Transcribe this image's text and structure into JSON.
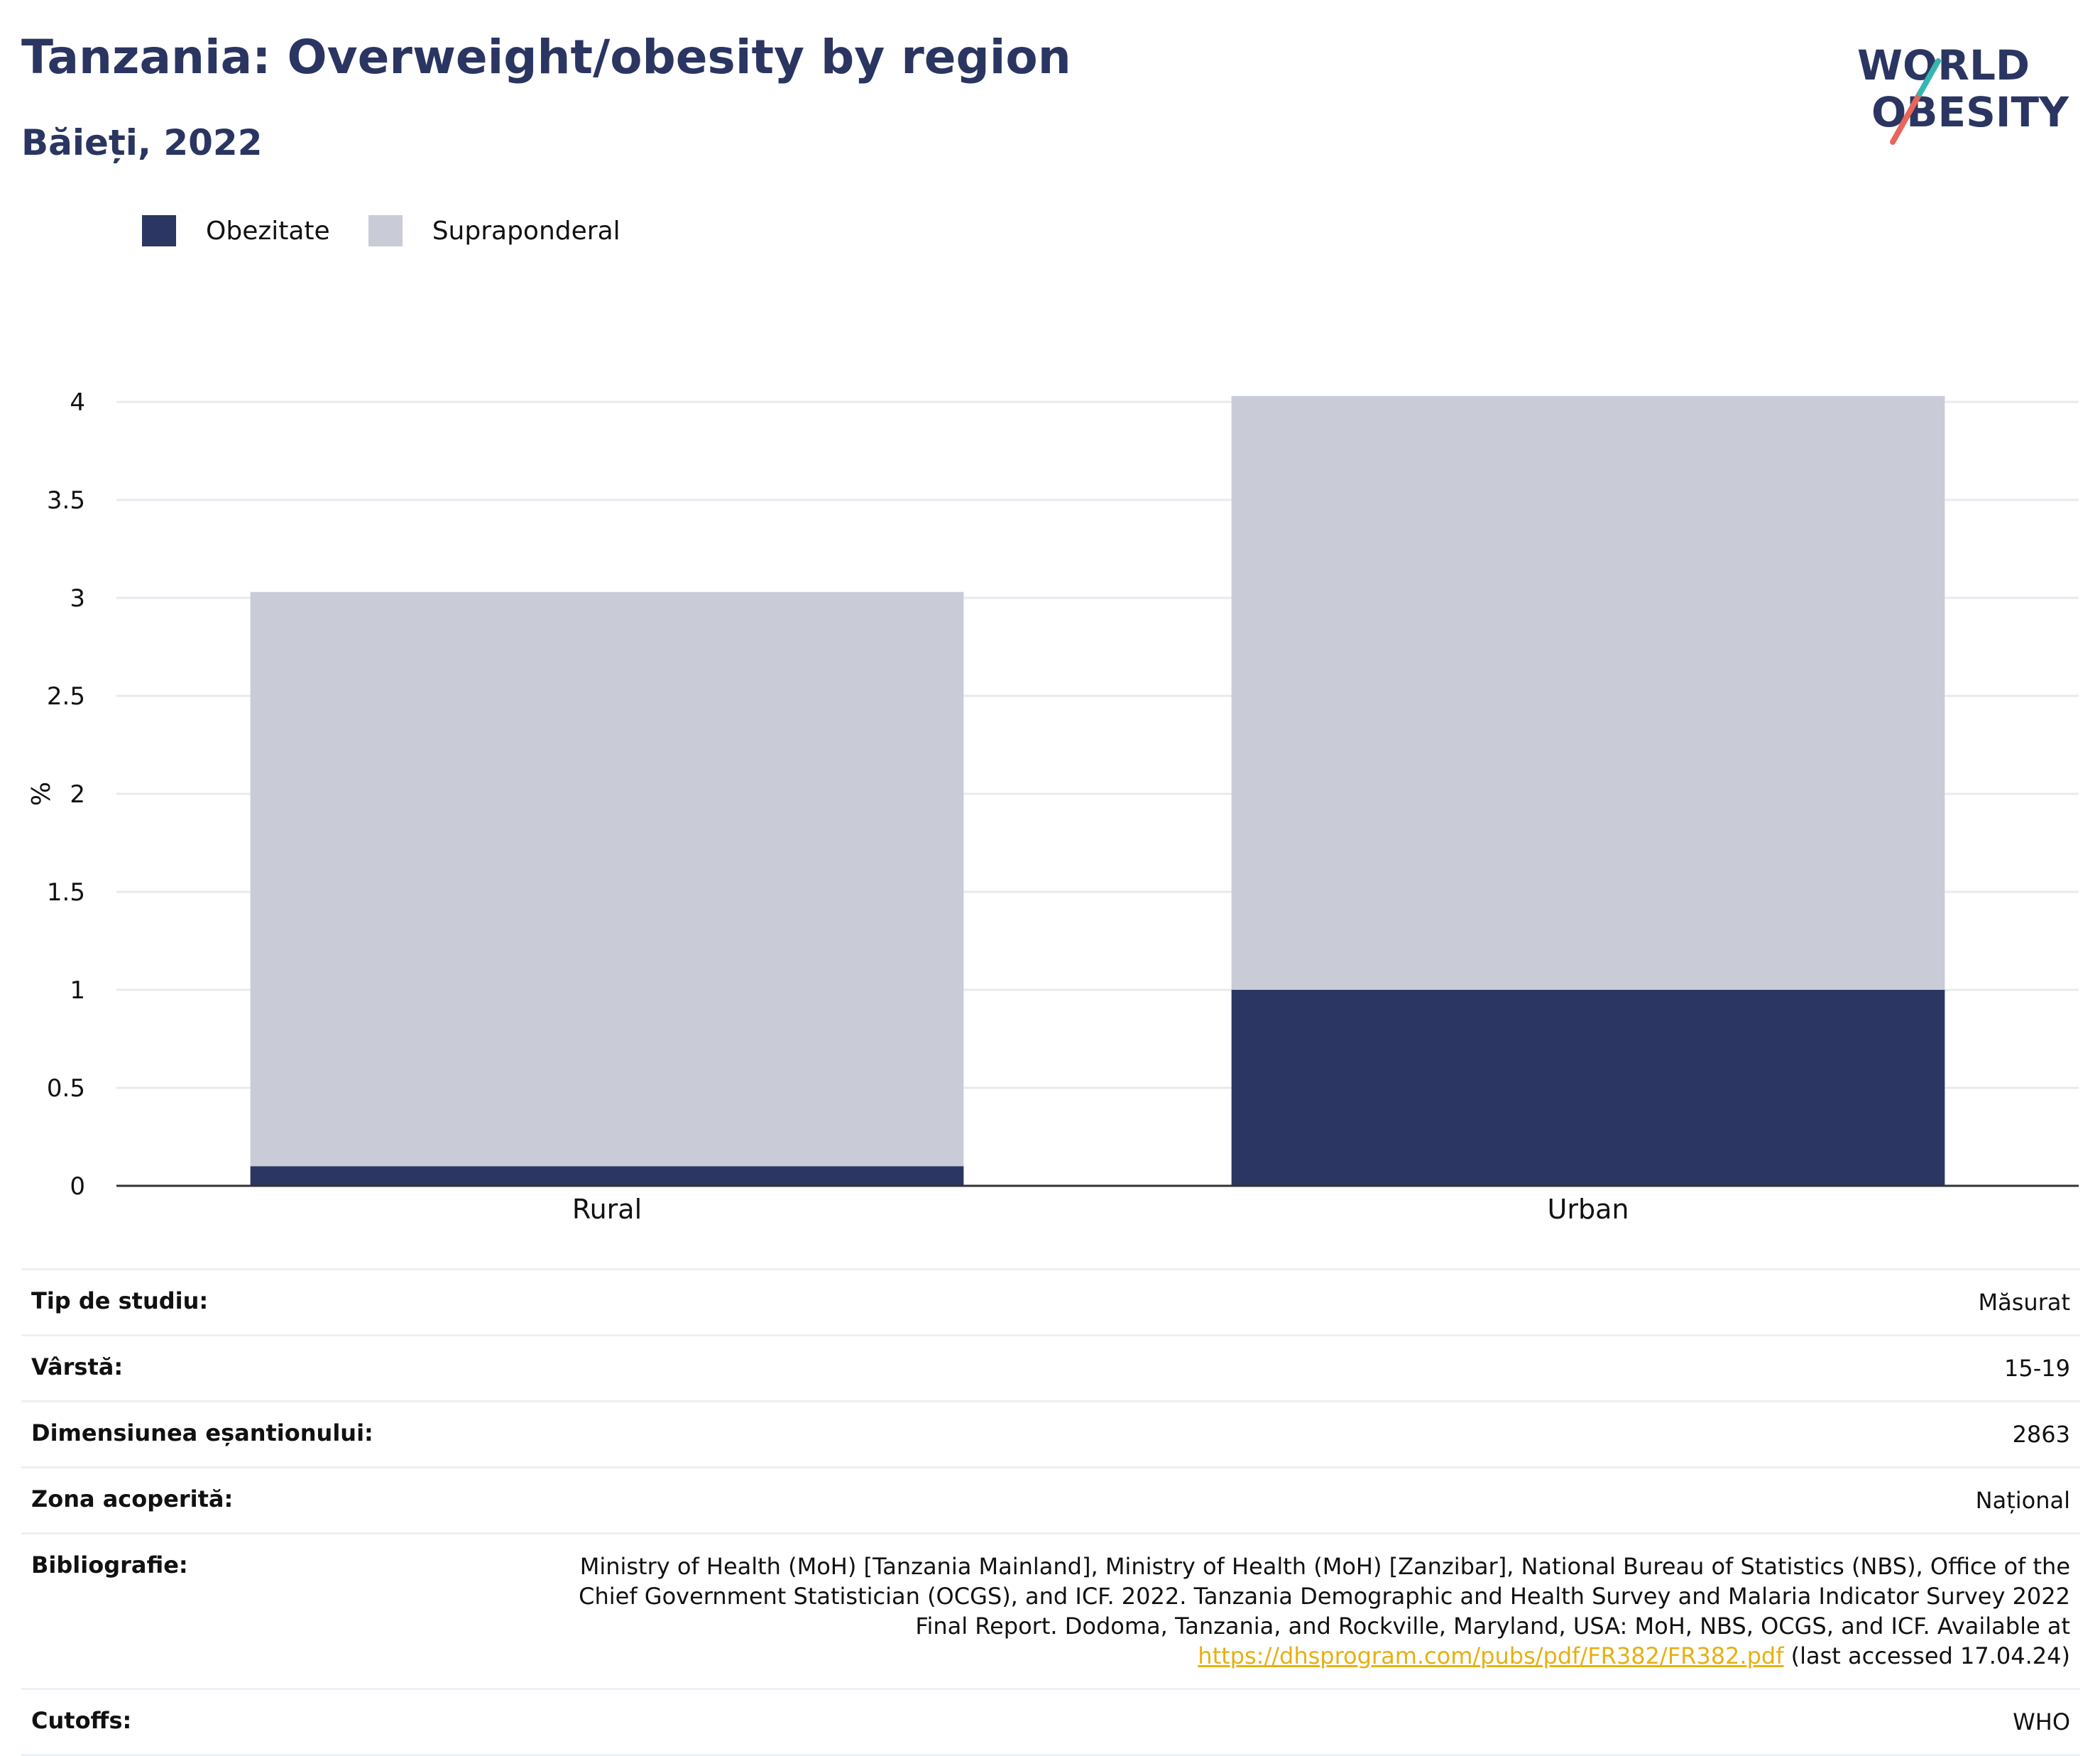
{
  "header": {
    "title": "Tanzania: Overweight/obesity by region",
    "subtitle": "Băieți, 2022"
  },
  "logo": {
    "line1": "WORLD",
    "line2": "OBESITY"
  },
  "colors": {
    "obesity": "#2b3663",
    "overweight": "#c9ccd7",
    "title": "#2b3561",
    "link": "#e6b012",
    "grid": "#e8eaef"
  },
  "chart_data": {
    "type": "bar",
    "stacked": true,
    "categories": [
      "Rural",
      "Urban"
    ],
    "series": [
      {
        "name": "Obezitate",
        "values": [
          0.1,
          1.0
        ]
      },
      {
        "name": "Supraponderal",
        "values": [
          2.93,
          3.03
        ]
      }
    ],
    "totals": [
      3.03,
      4.03
    ],
    "ylabel": "%",
    "xlabel": "",
    "ylim": [
      0,
      4
    ],
    "yticks": [
      "0",
      "0.5",
      "1",
      "1.5",
      "2",
      "2.5",
      "3",
      "3.5",
      "4"
    ],
    "grid": true,
    "legend_position": "top-left"
  },
  "info": {
    "study_type": {
      "label": "Tip de studiu:",
      "value": "Măsurat"
    },
    "age": {
      "label": "Vârstă:",
      "value": "15-19"
    },
    "sample_size": {
      "label": "Dimensiunea eșantionului:",
      "value": "2863"
    },
    "coverage": {
      "label": "Zona acoperită:",
      "value": "Național"
    },
    "bibliography": {
      "label": "Bibliografie:",
      "line1": "Ministry of Health (MoH) [Tanzania Mainland], Ministry of Health (MoH) [Zanzibar], National Bureau of Statistics (NBS), Office of the",
      "line2": "Chief Government Statistician (OCGS), and ICF. 2022. Tanzania Demographic and Health Survey and Malaria Indicator Survey 2022",
      "line3": "Final Report. Dodoma, Tanzania, and Rockville, Maryland, USA: MoH, NBS, OCGS, and ICF. Available at",
      "link": "https://dhsprogram.com/pubs/pdf/FR382/FR382.pdf",
      "suffix": " (last accessed 17.04.24)"
    },
    "cutoffs": {
      "label": "Cutoffs:",
      "value": "WHO"
    }
  }
}
